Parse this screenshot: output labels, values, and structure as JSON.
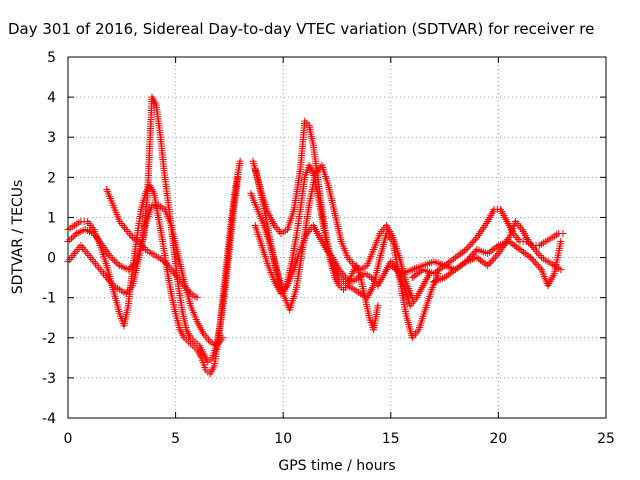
{
  "chart_data": {
    "type": "scatter",
    "title": "Day 301 of 2016, Sidereal Day-to-day VTEC variation (SDTVAR) for receiver re",
    "xlabel": "GPS time / hours",
    "ylabel": "SDTVAR / TECUs",
    "xlim": [
      0,
      25
    ],
    "ylim": [
      -4,
      5
    ],
    "xticks": [
      "0",
      "5",
      "10",
      "15",
      "20",
      "25"
    ],
    "yticks": [
      "-4",
      "-3",
      "-2",
      "-1",
      "0",
      "1",
      "2",
      "3",
      "4",
      "5"
    ],
    "grid": true,
    "marker": "plus",
    "color": "#ff0000",
    "series": [
      {
        "x": [
          0.0,
          0.3,
          0.6,
          0.9,
          1.2,
          1.5,
          1.8,
          2.1,
          2.4,
          2.6,
          2.8,
          3.0,
          3.2,
          3.4,
          3.6,
          3.8,
          4.0,
          4.2,
          4.4,
          4.6,
          4.8,
          5.0,
          5.2,
          5.4,
          5.6,
          5.8,
          6.0,
          6.2,
          6.4,
          6.6,
          6.8,
          7.0,
          7.2,
          7.4,
          7.6,
          7.8,
          8.0
        ],
        "y": [
          0.7,
          0.8,
          0.9,
          0.9,
          0.7,
          0.3,
          -0.2,
          -0.8,
          -1.4,
          -1.7,
          -1.2,
          -0.3,
          0.5,
          1.2,
          1.6,
          1.8,
          1.6,
          1.0,
          0.4,
          -0.3,
          -0.9,
          -1.4,
          -1.8,
          -2.0,
          -2.1,
          -2.2,
          -2.3,
          -2.5,
          -2.8,
          -2.9,
          -2.7,
          -2.0,
          -1.0,
          0.0,
          1.0,
          1.8,
          2.4
        ]
      },
      {
        "x": [
          0.0,
          0.4,
          0.8,
          1.2,
          1.6,
          2.0,
          2.4,
          2.8,
          3.2,
          3.5,
          3.7,
          3.9,
          4.1,
          4.3,
          4.5,
          4.7,
          4.9,
          5.1,
          5.3,
          5.5,
          5.7,
          5.9,
          6.1,
          6.3,
          6.5,
          6.7,
          6.9,
          7.1,
          7.3,
          7.5,
          7.7,
          7.9
        ],
        "y": [
          0.4,
          0.6,
          0.7,
          0.6,
          0.3,
          0.0,
          -0.2,
          -0.3,
          -0.1,
          0.5,
          1.6,
          4.0,
          3.8,
          3.0,
          2.0,
          1.2,
          0.3,
          -0.6,
          -1.3,
          -1.8,
          -2.0,
          -2.1,
          -2.2,
          -2.4,
          -2.6,
          -2.5,
          -2.2,
          -1.6,
          -0.8,
          0.2,
          1.2,
          2.0
        ]
      },
      {
        "x": [
          0.0,
          0.3,
          0.6,
          0.9,
          1.2,
          1.5,
          1.8,
          2.1,
          2.4,
          2.7,
          3.0,
          3.3,
          3.6,
          3.9,
          4.2,
          4.5,
          4.8,
          5.1,
          5.4,
          5.7,
          6.0,
          6.3,
          6.6,
          6.9,
          7.2
        ],
        "y": [
          -0.1,
          0.1,
          0.3,
          0.1,
          -0.1,
          -0.3,
          -0.5,
          -0.7,
          -0.8,
          -0.9,
          -0.7,
          0.0,
          0.8,
          1.3,
          1.3,
          1.2,
          0.8,
          0.1,
          -0.6,
          -1.2,
          -1.6,
          -1.9,
          -2.1,
          -2.2,
          -2.0
        ]
      },
      {
        "x": [
          1.8,
          2.1,
          2.4,
          2.7,
          3.0,
          3.3,
          3.6,
          3.9,
          4.2,
          4.5,
          4.8,
          5.1,
          5.4,
          5.7,
          6.0
        ],
        "y": [
          1.7,
          1.3,
          0.9,
          0.7,
          0.5,
          0.4,
          0.2,
          0.1,
          0.0,
          -0.1,
          -0.3,
          -0.5,
          -0.7,
          -0.9,
          -1.0
        ]
      },
      {
        "x": [
          8.6,
          8.8,
          9.0,
          9.2,
          9.4,
          9.6,
          9.8,
          10.0,
          10.2,
          10.4,
          10.6,
          10.8,
          11.0,
          11.2,
          11.4,
          11.6,
          11.8,
          12.0,
          12.2,
          12.4,
          12.6,
          12.8,
          13.0,
          13.2,
          13.4,
          13.6,
          13.8,
          14.0,
          14.2,
          14.4
        ],
        "y": [
          2.4,
          2.0,
          1.5,
          1.0,
          0.4,
          -0.1,
          -0.6,
          -0.9,
          -0.6,
          -0.1,
          0.5,
          1.2,
          2.0,
          2.3,
          2.1,
          1.6,
          1.0,
          0.4,
          -0.1,
          -0.5,
          -0.7,
          -0.8,
          -0.7,
          -0.4,
          -0.2,
          -0.5,
          -1.0,
          -1.5,
          -1.8,
          -1.2
        ]
      },
      {
        "x": [
          8.7,
          9.0,
          9.3,
          9.6,
          9.9,
          10.2,
          10.5,
          10.8,
          11.0,
          11.2,
          11.4,
          11.6,
          11.8,
          12.0,
          12.2,
          12.4,
          12.6,
          12.8,
          13.0,
          13.3,
          13.6,
          13.9,
          14.2,
          14.5,
          14.8,
          15.1,
          15.4,
          15.7,
          16.0,
          16.3,
          16.6,
          16.9,
          17.2
        ],
        "y": [
          2.2,
          1.6,
          1.1,
          0.8,
          0.6,
          0.7,
          1.2,
          2.2,
          3.4,
          3.3,
          2.8,
          2.0,
          1.2,
          0.5,
          0.0,
          -0.3,
          -0.5,
          -0.6,
          -0.7,
          -0.8,
          -0.9,
          -1.0,
          -0.7,
          0.0,
          0.6,
          0.4,
          -0.5,
          -1.4,
          -2.0,
          -1.8,
          -1.3,
          -0.8,
          -0.4
        ]
      },
      {
        "x": [
          8.5,
          8.8,
          9.1,
          9.4,
          9.7,
          10.0,
          10.3,
          10.6,
          10.9,
          11.2,
          11.5,
          11.8,
          12.1,
          12.4,
          12.7,
          13.0,
          13.3,
          13.6,
          13.9,
          14.2,
          14.5,
          14.8,
          15.1,
          15.4,
          15.7,
          16.0
        ],
        "y": [
          1.6,
          1.2,
          0.8,
          0.3,
          -0.3,
          -0.9,
          -1.3,
          -0.8,
          0.2,
          1.3,
          2.1,
          2.3,
          1.8,
          1.1,
          0.4,
          0.0,
          -0.2,
          -0.3,
          -0.2,
          0.2,
          0.6,
          0.8,
          0.5,
          0.0,
          -0.6,
          -1.0
        ]
      },
      {
        "x": [
          8.7,
          9.0,
          9.3,
          9.6,
          9.9,
          10.2,
          10.5,
          10.8,
          11.1,
          11.4,
          11.7,
          12.0,
          12.3,
          12.6,
          12.9,
          13.2,
          13.5,
          13.8,
          14.1,
          14.4,
          14.7,
          15.0,
          15.3,
          15.6,
          15.9,
          16.2,
          16.5,
          16.8
        ],
        "y": [
          0.8,
          0.3,
          -0.2,
          -0.6,
          -0.9,
          -0.7,
          -0.3,
          0.2,
          0.6,
          0.8,
          0.5,
          0.2,
          0.0,
          -0.3,
          -0.5,
          -0.6,
          -0.5,
          -0.4,
          -0.5,
          -0.7,
          -0.4,
          -0.1,
          -0.3,
          -0.7,
          -1.2,
          -1.0,
          -0.7,
          -0.4
        ]
      },
      {
        "x": [
          15.0,
          15.5,
          16.0,
          16.5,
          17.0,
          17.5,
          18.0,
          18.5,
          19.0,
          19.5,
          19.8,
          20.1,
          20.4,
          20.7,
          21.0,
          21.3,
          21.6,
          21.9,
          22.2,
          22.5,
          22.8,
          23.0
        ],
        "y": [
          -0.2,
          -0.4,
          -0.3,
          -0.2,
          -0.1,
          -0.2,
          0.0,
          0.2,
          0.5,
          0.9,
          1.2,
          1.2,
          0.9,
          0.6,
          0.4,
          0.4,
          0.3,
          0.3,
          0.4,
          0.5,
          0.6,
          0.6
        ]
      },
      {
        "x": [
          16.0,
          16.5,
          17.0,
          17.5,
          18.0,
          18.5,
          19.0,
          19.5,
          20.0,
          20.5,
          20.8,
          21.1,
          21.4,
          21.7,
          22.0,
          22.3,
          22.6,
          22.9
        ],
        "y": [
          -0.5,
          -0.3,
          -0.4,
          -0.2,
          -0.3,
          -0.1,
          0.0,
          -0.2,
          0.1,
          0.5,
          0.9,
          0.7,
          0.4,
          0.2,
          0.0,
          -0.1,
          -0.2,
          -0.3
        ]
      },
      {
        "x": [
          17.0,
          17.5,
          18.0,
          18.5,
          19.0,
          19.5,
          20.0,
          20.5,
          21.0,
          21.5,
          22.0,
          22.3,
          22.6,
          22.9
        ],
        "y": [
          -0.6,
          -0.5,
          -0.3,
          -0.1,
          0.2,
          0.1,
          0.3,
          0.4,
          0.2,
          0.0,
          -0.3,
          -0.7,
          -0.4,
          0.4
        ]
      }
    ]
  }
}
